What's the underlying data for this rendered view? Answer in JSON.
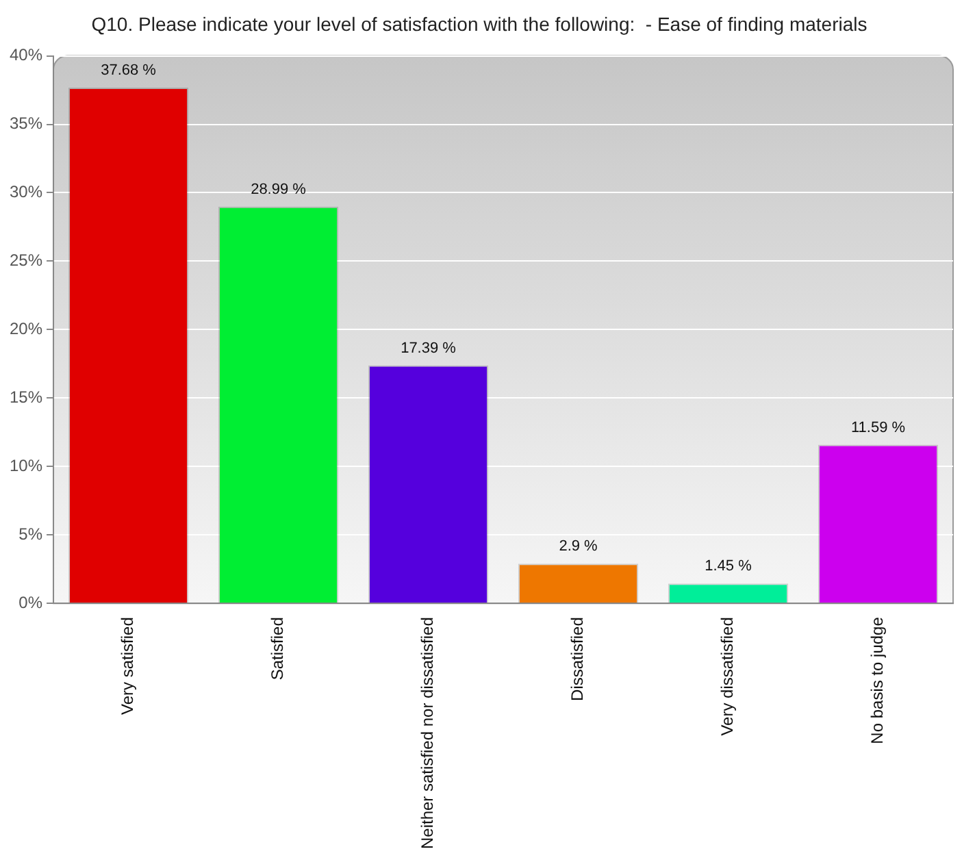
{
  "chart_data": {
    "type": "bar",
    "title": "Q10. Please indicate your level of satisfaction with the following:  - Ease of finding materials",
    "categories": [
      "Very satisfied",
      "Satisfied",
      "Neither satisfied nor dissatisfied",
      "Dissatisfied",
      "Very dissatisfied",
      "No basis to judge"
    ],
    "values": [
      37.68,
      28.99,
      17.39,
      2.9,
      1.45,
      11.59
    ],
    "colors": [
      "#e00000",
      "#00ee33",
      "#5500dd",
      "#ee7700",
      "#00ee99",
      "#cc00ee"
    ],
    "value_labels": [
      "37.68 %",
      "28.99 %",
      "17.39 %",
      "2.9 %",
      "1.45 %",
      "11.59 %"
    ],
    "ylim": [
      0,
      40
    ],
    "yticks": [
      {
        "value": 0,
        "label": "0%"
      },
      {
        "value": 5,
        "label": "5%"
      },
      {
        "value": 10,
        "label": "10%"
      },
      {
        "value": 15,
        "label": "15%"
      },
      {
        "value": 20,
        "label": "20%"
      },
      {
        "value": 25,
        "label": "25%"
      },
      {
        "value": 30,
        "label": "30%"
      },
      {
        "value": 35,
        "label": "35%"
      },
      {
        "value": 40,
        "label": "40%"
      }
    ],
    "grid": "y",
    "legend": false
  }
}
